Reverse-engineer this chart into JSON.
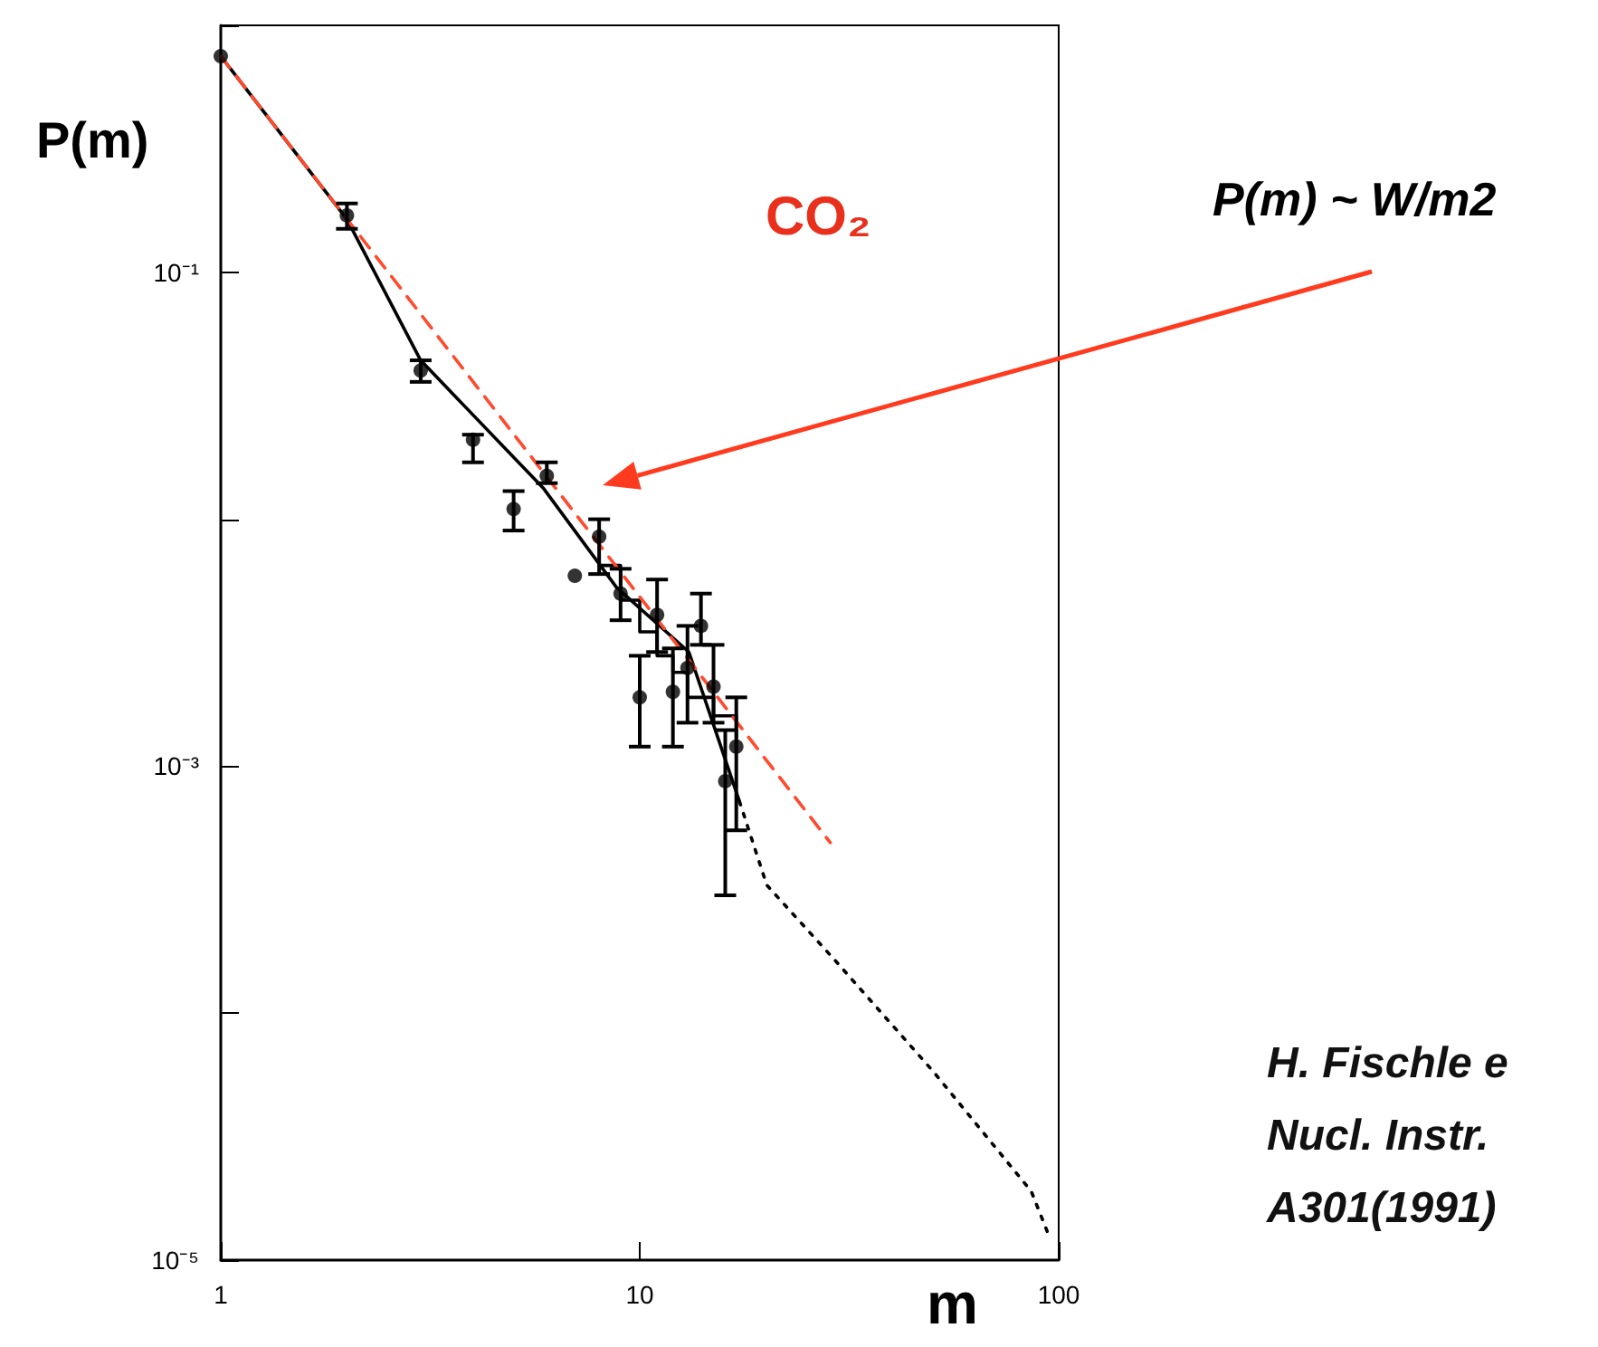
{
  "chart_data": {
    "type": "scatter",
    "title": "CO₂",
    "xlabel": "m",
    "ylabel": "P(m)",
    "log": "xy",
    "xlim": [
      1,
      100
    ],
    "ylim": [
      1e-05,
      1
    ],
    "xticks": [
      1,
      10,
      100
    ],
    "yticks": [
      {
        "value": 1e-05,
        "label": "10⁻⁵"
      },
      {
        "value": 0.0001,
        "label": null
      },
      {
        "value": 0.001,
        "label": "10⁻³"
      },
      {
        "value": 0.01,
        "label": null
      },
      {
        "value": 0.1,
        "label": "10⁻¹"
      },
      {
        "value": 1,
        "label": null
      }
    ],
    "annotations": [
      "P(m) ~ W/m2",
      "H. Fischle e",
      "Nucl. Instr.",
      "A301(1991)"
    ],
    "series": [
      {
        "color": "#000000",
        "marker": "circle",
        "x": [
          1,
          2,
          3,
          4,
          5,
          6,
          7,
          8,
          9,
          10,
          11,
          12,
          13,
          14,
          15,
          16,
          17
        ],
        "values": [
          0.75,
          0.17,
          0.04,
          0.021,
          0.011,
          0.015,
          0.0059,
          0.0085,
          0.005,
          0.0019,
          0.0041,
          0.002,
          0.0025,
          0.0037,
          0.0021,
          0.00087,
          0.0012
        ],
        "errors": [
          null,
          [
            0.15,
            0.19
          ],
          [
            0.036,
            0.044
          ],
          [
            0.017,
            0.022
          ],
          [
            0.009,
            0.013
          ],
          [
            0.014,
            0.017
          ],
          null,
          [
            0.006,
            0.01
          ],
          [
            0.0039,
            0.0063
          ],
          [
            0.0012,
            0.0028
          ],
          [
            0.0029,
            0.0057
          ],
          [
            0.0012,
            0.003
          ],
          [
            0.0015,
            0.0037
          ],
          [
            0.0031,
            0.005
          ],
          [
            0.0015,
            0.0031
          ],
          [
            0.0003,
            0.0014
          ],
          [
            0.00055,
            0.0019
          ]
        ]
      },
      {
        "type": "line",
        "color": "#000000",
        "marker": "none",
        "line_style": "solid",
        "x": [
          1,
          2,
          3,
          5.9,
          8.8,
          13.1,
          17.3
        ],
        "values": [
          0.75,
          0.164,
          0.044,
          0.0133,
          0.0053,
          0.0029,
          0.00072
        ]
      },
      {
        "type": "line",
        "color": "#000000",
        "marker": "none",
        "line_style": "dotted",
        "x": [
          17.3,
          20.1,
          29.6,
          50.2,
          86,
          94
        ],
        "values": [
          0.00072,
          0.00033,
          0.00016,
          5.8e-05,
          1.9e-05,
          1.3e-05
        ]
      },
      {
        "type": "step",
        "color": "#000000",
        "marker": "none",
        "line_style": "solid",
        "x": [
          8,
          9,
          10,
          11,
          12,
          13,
          15,
          17
        ],
        "values": [
          0.0065,
          0.0047,
          0.0035,
          0.0028,
          0.0024,
          0.0019,
          0.0016,
          0.0013
        ]
      },
      {
        "type": "line",
        "color": "#ff4a2e",
        "marker": "none",
        "line_style": "dashed",
        "x": [
          1,
          28.5
        ],
        "values": [
          0.75,
          0.00049
        ]
      }
    ]
  }
}
